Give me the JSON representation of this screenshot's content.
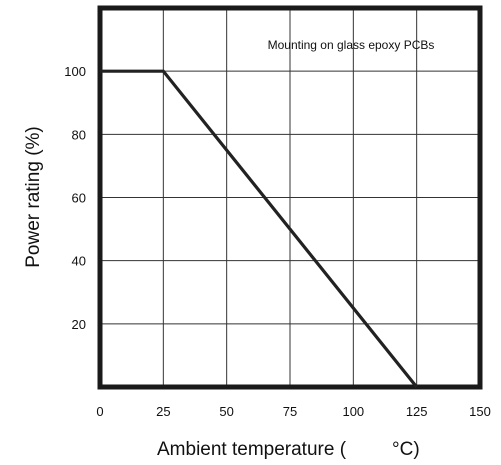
{
  "chart_data": {
    "type": "line",
    "title": "",
    "xlabel": "Ambient temperature (",
    "xlabel_unit": "°C)",
    "ylabel": "Power rating (%)",
    "xlim": [
      0,
      150
    ],
    "ylim": [
      0,
      120
    ],
    "x_ticks": [
      0,
      25,
      50,
      75,
      100,
      125,
      150
    ],
    "y_ticks": [
      20,
      40,
      60,
      80,
      100
    ],
    "grid": true,
    "annotation": "Mounting on glass epoxy PCBs",
    "series": [
      {
        "x": [
          0,
          25,
          125
        ],
        "y": [
          100,
          100,
          0
        ]
      }
    ],
    "colors": {
      "line": "#222222",
      "frame": "#1a1a1a",
      "grid": "#333333"
    }
  }
}
